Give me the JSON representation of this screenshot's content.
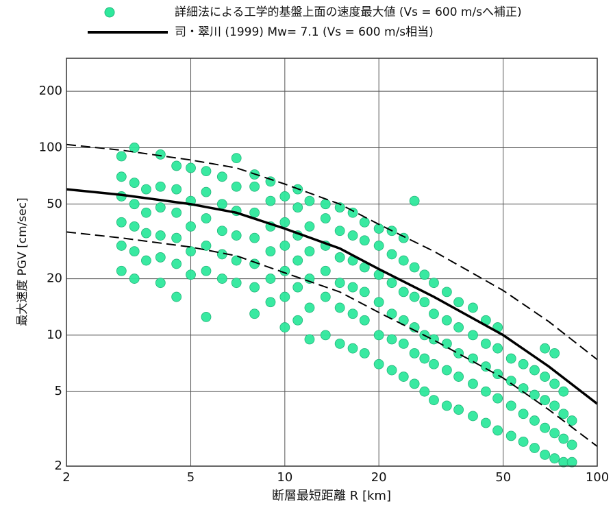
{
  "chart_data": {
    "type": "scatter",
    "xlabel": "断層最短距離 R [km]",
    "ylabel": "最大速度 PGV [cm/sec]",
    "log_x": true,
    "log_y": true,
    "grid": true,
    "xlim": [
      2,
      100
    ],
    "xticks": [
      2,
      5,
      10,
      20,
      50,
      100
    ],
    "ylim": [
      2,
      300
    ],
    "yticks": [
      2,
      5,
      10,
      20,
      50,
      100,
      200
    ],
    "series": [
      {
        "name": "詳細法による工学的基盤上面の速度最大値 (Vs = 600 m/sへ補正)",
        "type": "scatter",
        "color": "#2ee89c",
        "x": [
          3,
          3,
          3,
          3,
          3,
          3,
          3.3,
          3.3,
          3.3,
          3.3,
          3.3,
          3.3,
          3.6,
          3.6,
          3.6,
          3.6,
          4,
          4,
          4,
          4,
          4,
          4,
          4.5,
          4.5,
          4.5,
          4.5,
          4.5,
          4.5,
          5,
          5,
          5,
          5,
          5,
          5.6,
          5.6,
          5.6,
          5.6,
          5.6,
          5.6,
          6.3,
          6.3,
          6.3,
          6.3,
          6.3,
          7,
          7,
          7,
          7,
          7,
          7,
          8,
          8,
          8,
          8,
          8,
          8,
          8,
          9,
          9,
          9,
          9,
          9,
          9,
          10,
          10,
          10,
          10,
          10,
          10,
          11,
          11,
          11,
          11,
          11,
          11,
          12,
          12,
          12,
          12,
          12,
          12,
          13.5,
          13.5,
          13.5,
          13.5,
          13.5,
          13.5,
          15,
          15,
          15,
          15,
          15,
          15,
          16.5,
          16.5,
          16.5,
          16.5,
          16.5,
          16.5,
          18,
          18,
          18,
          18,
          18,
          18,
          20,
          20,
          20,
          20,
          20,
          20,
          22,
          22,
          22,
          22,
          22,
          22,
          24,
          24,
          24,
          24,
          24,
          24,
          26,
          26,
          26,
          26,
          26,
          26,
          28,
          28,
          28,
          28,
          28,
          30,
          30,
          30,
          30,
          30,
          33,
          33,
          33,
          33,
          33,
          36,
          36,
          36,
          36,
          36,
          40,
          40,
          40,
          40,
          40,
          44,
          44,
          44,
          44,
          44,
          48,
          48,
          48,
          48,
          48,
          53,
          53,
          53,
          53,
          58,
          58,
          58,
          58,
          63,
          63,
          63,
          63,
          68,
          68,
          68,
          68,
          68,
          73,
          73,
          73,
          73,
          73,
          78,
          78,
          78,
          78,
          83,
          83,
          83
        ],
        "values": [
          22,
          30,
          40,
          55,
          70,
          90,
          20,
          28,
          38,
          50,
          65,
          100,
          25,
          35,
          45,
          60,
          19,
          26,
          34,
          48,
          62,
          92,
          16,
          24,
          33,
          45,
          60,
          80,
          21,
          28,
          38,
          52,
          78,
          12.5,
          22,
          30,
          42,
          58,
          75,
          20,
          27,
          36,
          50,
          70,
          19,
          25,
          34,
          46,
          62,
          88,
          13,
          18,
          24,
          33,
          45,
          62,
          72,
          15,
          20,
          28,
          38,
          52,
          66,
          11,
          16,
          22,
          30,
          40,
          55,
          12,
          18,
          25,
          34,
          48,
          60,
          9.5,
          14,
          20,
          28,
          38,
          52,
          10,
          16,
          22,
          30,
          42,
          50,
          9,
          14,
          19,
          26,
          36,
          48,
          8.5,
          13,
          18,
          25,
          34,
          45,
          8,
          12,
          17,
          23,
          32,
          40,
          7,
          10,
          15,
          21,
          30,
          37,
          6.5,
          9.5,
          13,
          19,
          27,
          36,
          6,
          9,
          12,
          17,
          25,
          33,
          5.5,
          8,
          11,
          16,
          23,
          52,
          5,
          7.5,
          10,
          15,
          21,
          4.5,
          7,
          9.5,
          13,
          19,
          4.2,
          6.5,
          9,
          12,
          17,
          4,
          6,
          8,
          11,
          15,
          3.7,
          5.5,
          7.5,
          10,
          14,
          3.4,
          5,
          6.8,
          9,
          12,
          3.1,
          4.6,
          6.2,
          8.5,
          11,
          2.9,
          4.2,
          5.7,
          7.5,
          2.7,
          3.8,
          5.2,
          7,
          2.5,
          3.5,
          4.8,
          6.5,
          2.3,
          3.2,
          4.5,
          6,
          8.5,
          2.2,
          3,
          4.2,
          5.5,
          8,
          2.1,
          2.8,
          3.8,
          5,
          2.1,
          2.6,
          3.5
        ]
      },
      {
        "name": "司・翠川 (1999) Mw= 7.1 (Vs = 600 m/s相当)",
        "type": "line",
        "color": "#000000",
        "dash": false,
        "x": [
          2,
          3,
          5,
          7,
          10,
          15,
          20,
          30,
          50,
          70,
          100
        ],
        "values": [
          60,
          56,
          50,
          45,
          37,
          29,
          22.5,
          16,
          10,
          6.8,
          4.3
        ]
      },
      {
        "type": "line",
        "color": "#000000",
        "dash": true,
        "x": [
          2,
          3,
          5,
          7,
          10,
          15,
          20,
          30,
          50,
          70,
          100
        ],
        "values": [
          104,
          97,
          86,
          78,
          64,
          50,
          39,
          28,
          17.3,
          11.8,
          7.4
        ]
      },
      {
        "type": "line",
        "color": "#000000",
        "dash": true,
        "x": [
          2,
          3,
          5,
          7,
          10,
          15,
          20,
          30,
          50,
          70,
          100
        ],
        "values": [
          35.5,
          33,
          29.5,
          26.5,
          21.5,
          17,
          13.2,
          9.4,
          5.9,
          4,
          2.55
        ]
      }
    ]
  }
}
